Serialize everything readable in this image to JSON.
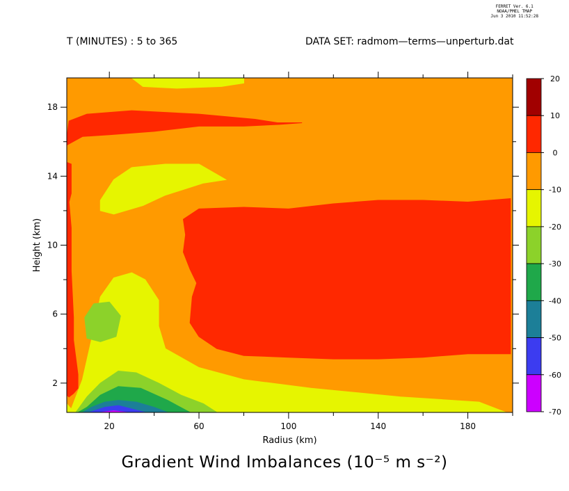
{
  "header": {
    "time_range": "T (MINUTES) : 5 to 365",
    "dataset": "DATA SET: radmom—terms—unperturb.dat",
    "ferret": [
      "FERRET Ver. 6.1",
      "NOAA/PMEL TMAP",
      "Jun  3 2010 11:52:28"
    ]
  },
  "chart_data": {
    "type": "heatmap",
    "title": "Gradient Wind Imbalances (10⁻⁵ m s⁻²)",
    "xlabel": "Radius (km)",
    "ylabel": "Height (km)",
    "xlim": [
      1,
      200
    ],
    "ylim": [
      0.3,
      19.7
    ],
    "xticks": [
      20,
      60,
      100,
      140,
      180
    ],
    "yticks": [
      2,
      6,
      10,
      14,
      18
    ],
    "grid": false,
    "colorbar": {
      "levels": [
        20,
        10,
        0,
        -10,
        -20,
        -30,
        -40,
        -50,
        -60,
        -70
      ],
      "colors": [
        "#a10000",
        "#ff2800",
        "#ff9a00",
        "#e6f500",
        "#8cd22a",
        "#1fa84a",
        "#1c7f98",
        "#3c3cf0",
        "#cc00ff"
      ],
      "legend_position": "right"
    },
    "regions": [
      {
        "level": "-10 to 0",
        "color": "#ff9a00",
        "points": [
          [
            1,
            0.3
          ],
          [
            200,
            0.3
          ],
          [
            200,
            19.7
          ],
          [
            1,
            19.7
          ]
        ]
      },
      {
        "level": "0 to 10",
        "color": "#ff2800",
        "points": [
          [
            53,
            11.5
          ],
          [
            60,
            12.1
          ],
          [
            80,
            12.2
          ],
          [
            100,
            12.1
          ],
          [
            120,
            12.4
          ],
          [
            140,
            12.6
          ],
          [
            160,
            12.6
          ],
          [
            180,
            12.5
          ],
          [
            199,
            12.7
          ],
          [
            199,
            3.7
          ],
          [
            180,
            3.7
          ],
          [
            160,
            3.5
          ],
          [
            140,
            3.4
          ],
          [
            120,
            3.4
          ],
          [
            100,
            3.5
          ],
          [
            80,
            3.6
          ],
          [
            68,
            4.0
          ],
          [
            60,
            4.7
          ],
          [
            56,
            5.5
          ],
          [
            57,
            7.0
          ],
          [
            59,
            7.8
          ],
          [
            56,
            8.6
          ],
          [
            53,
            9.6
          ],
          [
            54,
            10.6
          ]
        ]
      },
      {
        "level": "0 to 10",
        "color": "#ff2800",
        "points": [
          [
            1,
            16.2
          ],
          [
            2,
            17.2
          ],
          [
            10,
            17.6
          ],
          [
            30,
            17.8
          ],
          [
            60,
            17.6
          ],
          [
            85,
            17.3
          ],
          [
            95,
            17.1
          ],
          [
            102,
            17.1
          ],
          [
            106,
            17.1
          ],
          [
            96,
            17.0
          ],
          [
            80,
            16.9
          ],
          [
            60,
            16.9
          ],
          [
            40,
            16.6
          ],
          [
            20,
            16.4
          ],
          [
            8,
            16.3
          ],
          [
            1,
            15.8
          ]
        ]
      },
      {
        "level": "0 to 10",
        "color": "#ff2800",
        "points": [
          [
            1,
            14.8
          ],
          [
            3,
            14.7
          ],
          [
            3,
            13.0
          ],
          [
            2,
            12.5
          ],
          [
            3,
            11.0
          ],
          [
            3,
            8.5
          ],
          [
            4,
            5.8
          ],
          [
            4,
            4.5
          ],
          [
            5,
            3.5
          ],
          [
            6,
            2.5
          ],
          [
            6,
            1.7
          ],
          [
            4,
            1.4
          ],
          [
            2,
            1.2
          ],
          [
            1,
            1.3
          ]
        ]
      },
      {
        "level": "-20 to -10",
        "color": "#e6f500",
        "points": [
          [
            1,
            0.3
          ],
          [
            1,
            0.8
          ],
          [
            3,
            0.5
          ],
          [
            8,
            2.2
          ],
          [
            12,
            4.5
          ],
          [
            16,
            7.0
          ],
          [
            22,
            8.1
          ],
          [
            30,
            8.4
          ],
          [
            36,
            8.0
          ],
          [
            42,
            6.8
          ],
          [
            42,
            5.3
          ],
          [
            45,
            4.0
          ],
          [
            60,
            2.9
          ],
          [
            80,
            2.2
          ],
          [
            110,
            1.7
          ],
          [
            150,
            1.2
          ],
          [
            185,
            0.9
          ],
          [
            197,
            0.3
          ]
        ]
      },
      {
        "level": "-20 to -10",
        "color": "#e6f500",
        "points": [
          [
            16,
            12.6
          ],
          [
            22,
            13.8
          ],
          [
            30,
            14.5
          ],
          [
            45,
            14.7
          ],
          [
            60,
            14.7
          ],
          [
            72,
            13.8
          ],
          [
            62,
            13.6
          ],
          [
            45,
            12.9
          ],
          [
            35,
            12.3
          ],
          [
            22,
            11.8
          ],
          [
            16,
            12.0
          ]
        ]
      },
      {
        "level": "-20 to -10",
        "color": "#e6f500",
        "points": [
          [
            30,
            19.7
          ],
          [
            80,
            19.7
          ],
          [
            80,
            19.4
          ],
          [
            70,
            19.2
          ],
          [
            50,
            19.1
          ],
          [
            35,
            19.2
          ]
        ]
      },
      {
        "level": "-30 to -20",
        "color": "#8cd22a",
        "points": [
          [
            9,
            5.8
          ],
          [
            13,
            6.6
          ],
          [
            20,
            6.7
          ],
          [
            25,
            5.9
          ],
          [
            23,
            4.7
          ],
          [
            16,
            4.4
          ],
          [
            10,
            4.6
          ]
        ]
      },
      {
        "level": "-30 to -20",
        "color": "#8cd22a",
        "points": [
          [
            1,
            0.3
          ],
          [
            5,
            0.3
          ],
          [
            10,
            1.2
          ],
          [
            16,
            2.0
          ],
          [
            24,
            2.7
          ],
          [
            32,
            2.6
          ],
          [
            42,
            2.0
          ],
          [
            52,
            1.3
          ],
          [
            62,
            0.8
          ],
          [
            68,
            0.3
          ]
        ]
      },
      {
        "level": "-40 to -30",
        "color": "#1fa84a",
        "points": [
          [
            6,
            0.3
          ],
          [
            10,
            0.6
          ],
          [
            16,
            1.3
          ],
          [
            24,
            1.8
          ],
          [
            34,
            1.7
          ],
          [
            46,
            1.0
          ],
          [
            56,
            0.3
          ]
        ]
      },
      {
        "level": "-50 to -40",
        "color": "#1c7f98",
        "points": [
          [
            8,
            0.3
          ],
          [
            12,
            0.6
          ],
          [
            18,
            0.9
          ],
          [
            24,
            1.0
          ],
          [
            32,
            0.9
          ],
          [
            40,
            0.6
          ],
          [
            46,
            0.3
          ]
        ]
      },
      {
        "level": "-60 to -50",
        "color": "#3c3cf0",
        "points": [
          [
            11,
            0.3
          ],
          [
            18,
            0.6
          ],
          [
            24,
            0.7
          ],
          [
            30,
            0.5
          ],
          [
            36,
            0.3
          ]
        ]
      },
      {
        "level": "-70 to -60",
        "color": "#cc00ff",
        "points": [
          [
            16,
            0.3
          ],
          [
            22,
            0.4
          ],
          [
            28,
            0.3
          ]
        ]
      }
    ]
  }
}
